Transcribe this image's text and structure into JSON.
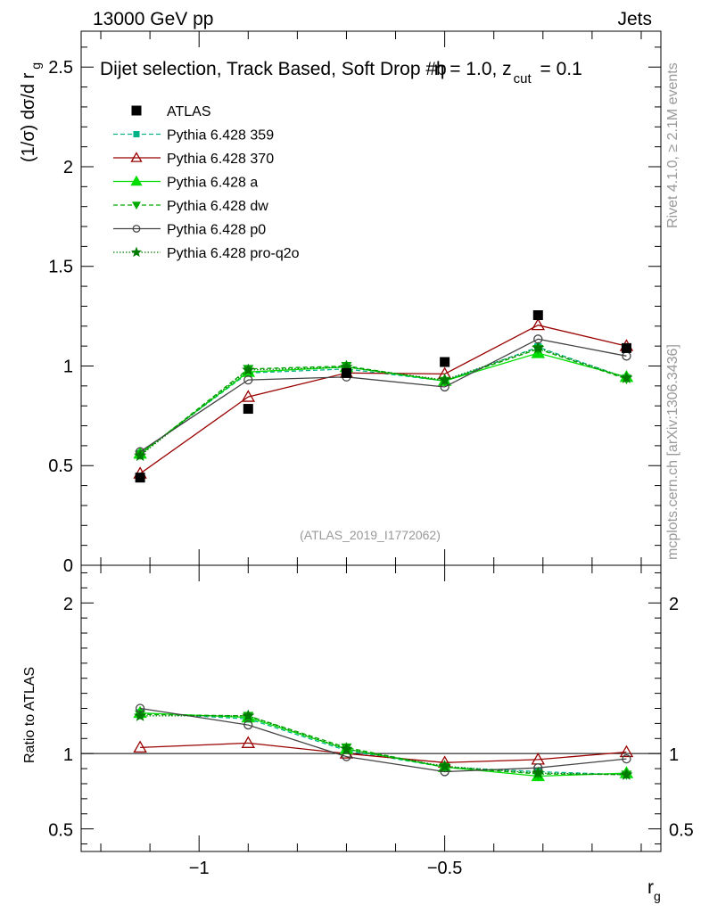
{
  "header": {
    "left": "13000 GeV pp",
    "right": "Jets"
  },
  "side_labels": {
    "rivet": "Rivet 4.1.0, ≥ 2.1M events",
    "mcplots": "mcplots.cern.ch [arXiv:1306.3436]"
  },
  "chart_data": {
    "type": "line",
    "title": "Dijet selection, Track Based, Soft Drop #beta = 1.0, z_cut = 0.1",
    "title_parts": {
      "main": "Dijet selection, Track Based, Soft Drop #b",
      "eta": "η = 1.0, z",
      "sub": "cut",
      "tail": " = 0.1"
    },
    "watermark": "(ATLAS_2019_I1772062)",
    "xlabel": "r",
    "xlabel_sub": "g",
    "ylabel": "(1/σ) dσ/d r",
    "ylabel_sub": "g",
    "ratio_ylabel": "Ratio to ATLAS",
    "xlim": [
      -1.24,
      -0.06
    ],
    "ylim": [
      0,
      2.68
    ],
    "ratio_ylim": [
      0.35,
      2.25
    ],
    "x_ticks": [
      -1,
      -0.5
    ],
    "x_tick_labels": [
      "−1",
      "−0.5"
    ],
    "y_ticks": [
      0,
      0.5,
      1,
      1.5,
      2,
      2.5
    ],
    "y_tick_labels": [
      "0",
      "0.5",
      "1",
      "1.5",
      "2",
      "2.5"
    ],
    "ratio_y_ticks": [
      0.5,
      1,
      2
    ],
    "ratio_y_tick_labels": [
      "0.5",
      "1",
      "2"
    ],
    "x": [
      -1.12,
      -0.9,
      -0.7,
      -0.5,
      -0.31,
      -0.13
    ],
    "data": {
      "name": "ATLAS",
      "values": [
        0.44,
        0.785,
        0.965,
        1.02,
        1.255,
        1.09
      ]
    },
    "series": [
      {
        "name": "Pythia 6.428 359",
        "color": "#00b386",
        "marker": "square",
        "dash": "5,3",
        "values": [
          0.56,
          0.965,
          0.985,
          0.925,
          1.095,
          0.94
        ],
        "ratio": [
          1.27,
          1.23,
          1.02,
          0.91,
          0.88,
          0.86
        ]
      },
      {
        "name": "Pythia 6.428 370",
        "color": "#990000",
        "marker": "triangle-open",
        "dash": "",
        "values": [
          0.46,
          0.845,
          0.965,
          0.96,
          1.205,
          1.1
        ],
        "ratio": [
          1.04,
          1.07,
          1.0,
          0.94,
          0.96,
          1.01
        ]
      },
      {
        "name": "Pythia 6.428 a",
        "color": "#00dd00",
        "marker": "triangle",
        "dash": "",
        "values": [
          0.56,
          0.97,
          0.995,
          0.925,
          1.065,
          0.945
        ],
        "ratio": [
          1.27,
          1.24,
          1.03,
          0.91,
          0.85,
          0.87
        ]
      },
      {
        "name": "Pythia 6.428 dw",
        "color": "#00aa00",
        "marker": "triangle-down",
        "dash": "5,3",
        "values": [
          0.555,
          0.985,
          1.0,
          0.925,
          1.085,
          0.935
        ],
        "ratio": [
          1.26,
          1.25,
          1.04,
          0.91,
          0.865,
          0.86
        ]
      },
      {
        "name": "Pythia 6.428 p0",
        "color": "#444444",
        "marker": "circle-open",
        "dash": "",
        "values": [
          0.57,
          0.93,
          0.945,
          0.895,
          1.135,
          1.05
        ],
        "ratio": [
          1.3,
          1.19,
          0.98,
          0.88,
          0.905,
          0.965
        ]
      },
      {
        "name": "Pythia 6.428 pro-q2o",
        "color": "#007a00",
        "marker": "star",
        "dash": "1.5,2",
        "values": [
          0.55,
          0.98,
          0.995,
          0.93,
          1.09,
          0.94
        ],
        "ratio": [
          1.25,
          1.25,
          1.03,
          0.915,
          0.87,
          0.86
        ]
      }
    ]
  }
}
